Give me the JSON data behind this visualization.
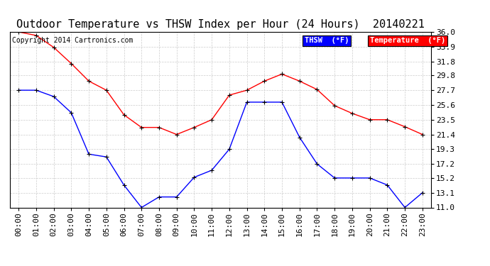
{
  "title": "Outdoor Temperature vs THSW Index per Hour (24 Hours)  20140221",
  "copyright": "Copyright 2014 Cartronics.com",
  "background_color": "#ffffff",
  "plot_bg_color": "#ffffff",
  "grid_color": "#cccccc",
  "hours": [
    "00:00",
    "01:00",
    "02:00",
    "03:00",
    "04:00",
    "05:00",
    "06:00",
    "07:00",
    "08:00",
    "09:00",
    "10:00",
    "11:00",
    "12:00",
    "13:00",
    "14:00",
    "15:00",
    "16:00",
    "17:00",
    "18:00",
    "19:00",
    "20:00",
    "21:00",
    "22:00",
    "23:00"
  ],
  "thsw": [
    27.7,
    27.7,
    26.8,
    24.5,
    18.6,
    18.2,
    14.2,
    11.0,
    12.5,
    12.5,
    15.3,
    16.3,
    19.3,
    26.0,
    26.0,
    26.0,
    21.0,
    17.2,
    15.2,
    15.2,
    15.2,
    14.2,
    11.0,
    13.1
  ],
  "temperature": [
    36.0,
    35.5,
    33.8,
    31.5,
    29.0,
    27.7,
    24.2,
    22.4,
    22.4,
    21.4,
    22.4,
    23.5,
    27.0,
    27.7,
    29.0,
    30.0,
    29.0,
    27.8,
    25.5,
    24.4,
    23.5,
    23.5,
    22.5,
    21.4
  ],
  "thsw_color": "#0000ff",
  "temp_color": "#ff0000",
  "marker": "+",
  "ylim": [
    11.0,
    36.0
  ],
  "yticks": [
    11.0,
    13.1,
    15.2,
    17.2,
    19.3,
    21.4,
    23.5,
    25.6,
    27.7,
    29.8,
    31.8,
    33.9,
    36.0
  ],
  "title_fontsize": 11,
  "tick_fontsize": 8,
  "copyright_fontsize": 7,
  "legend_thsw_label": "THSW  (°F)",
  "legend_temp_label": "Temperature  (°F)",
  "legend_thsw_bg": "#0000ff",
  "legend_temp_bg": "#ff0000"
}
